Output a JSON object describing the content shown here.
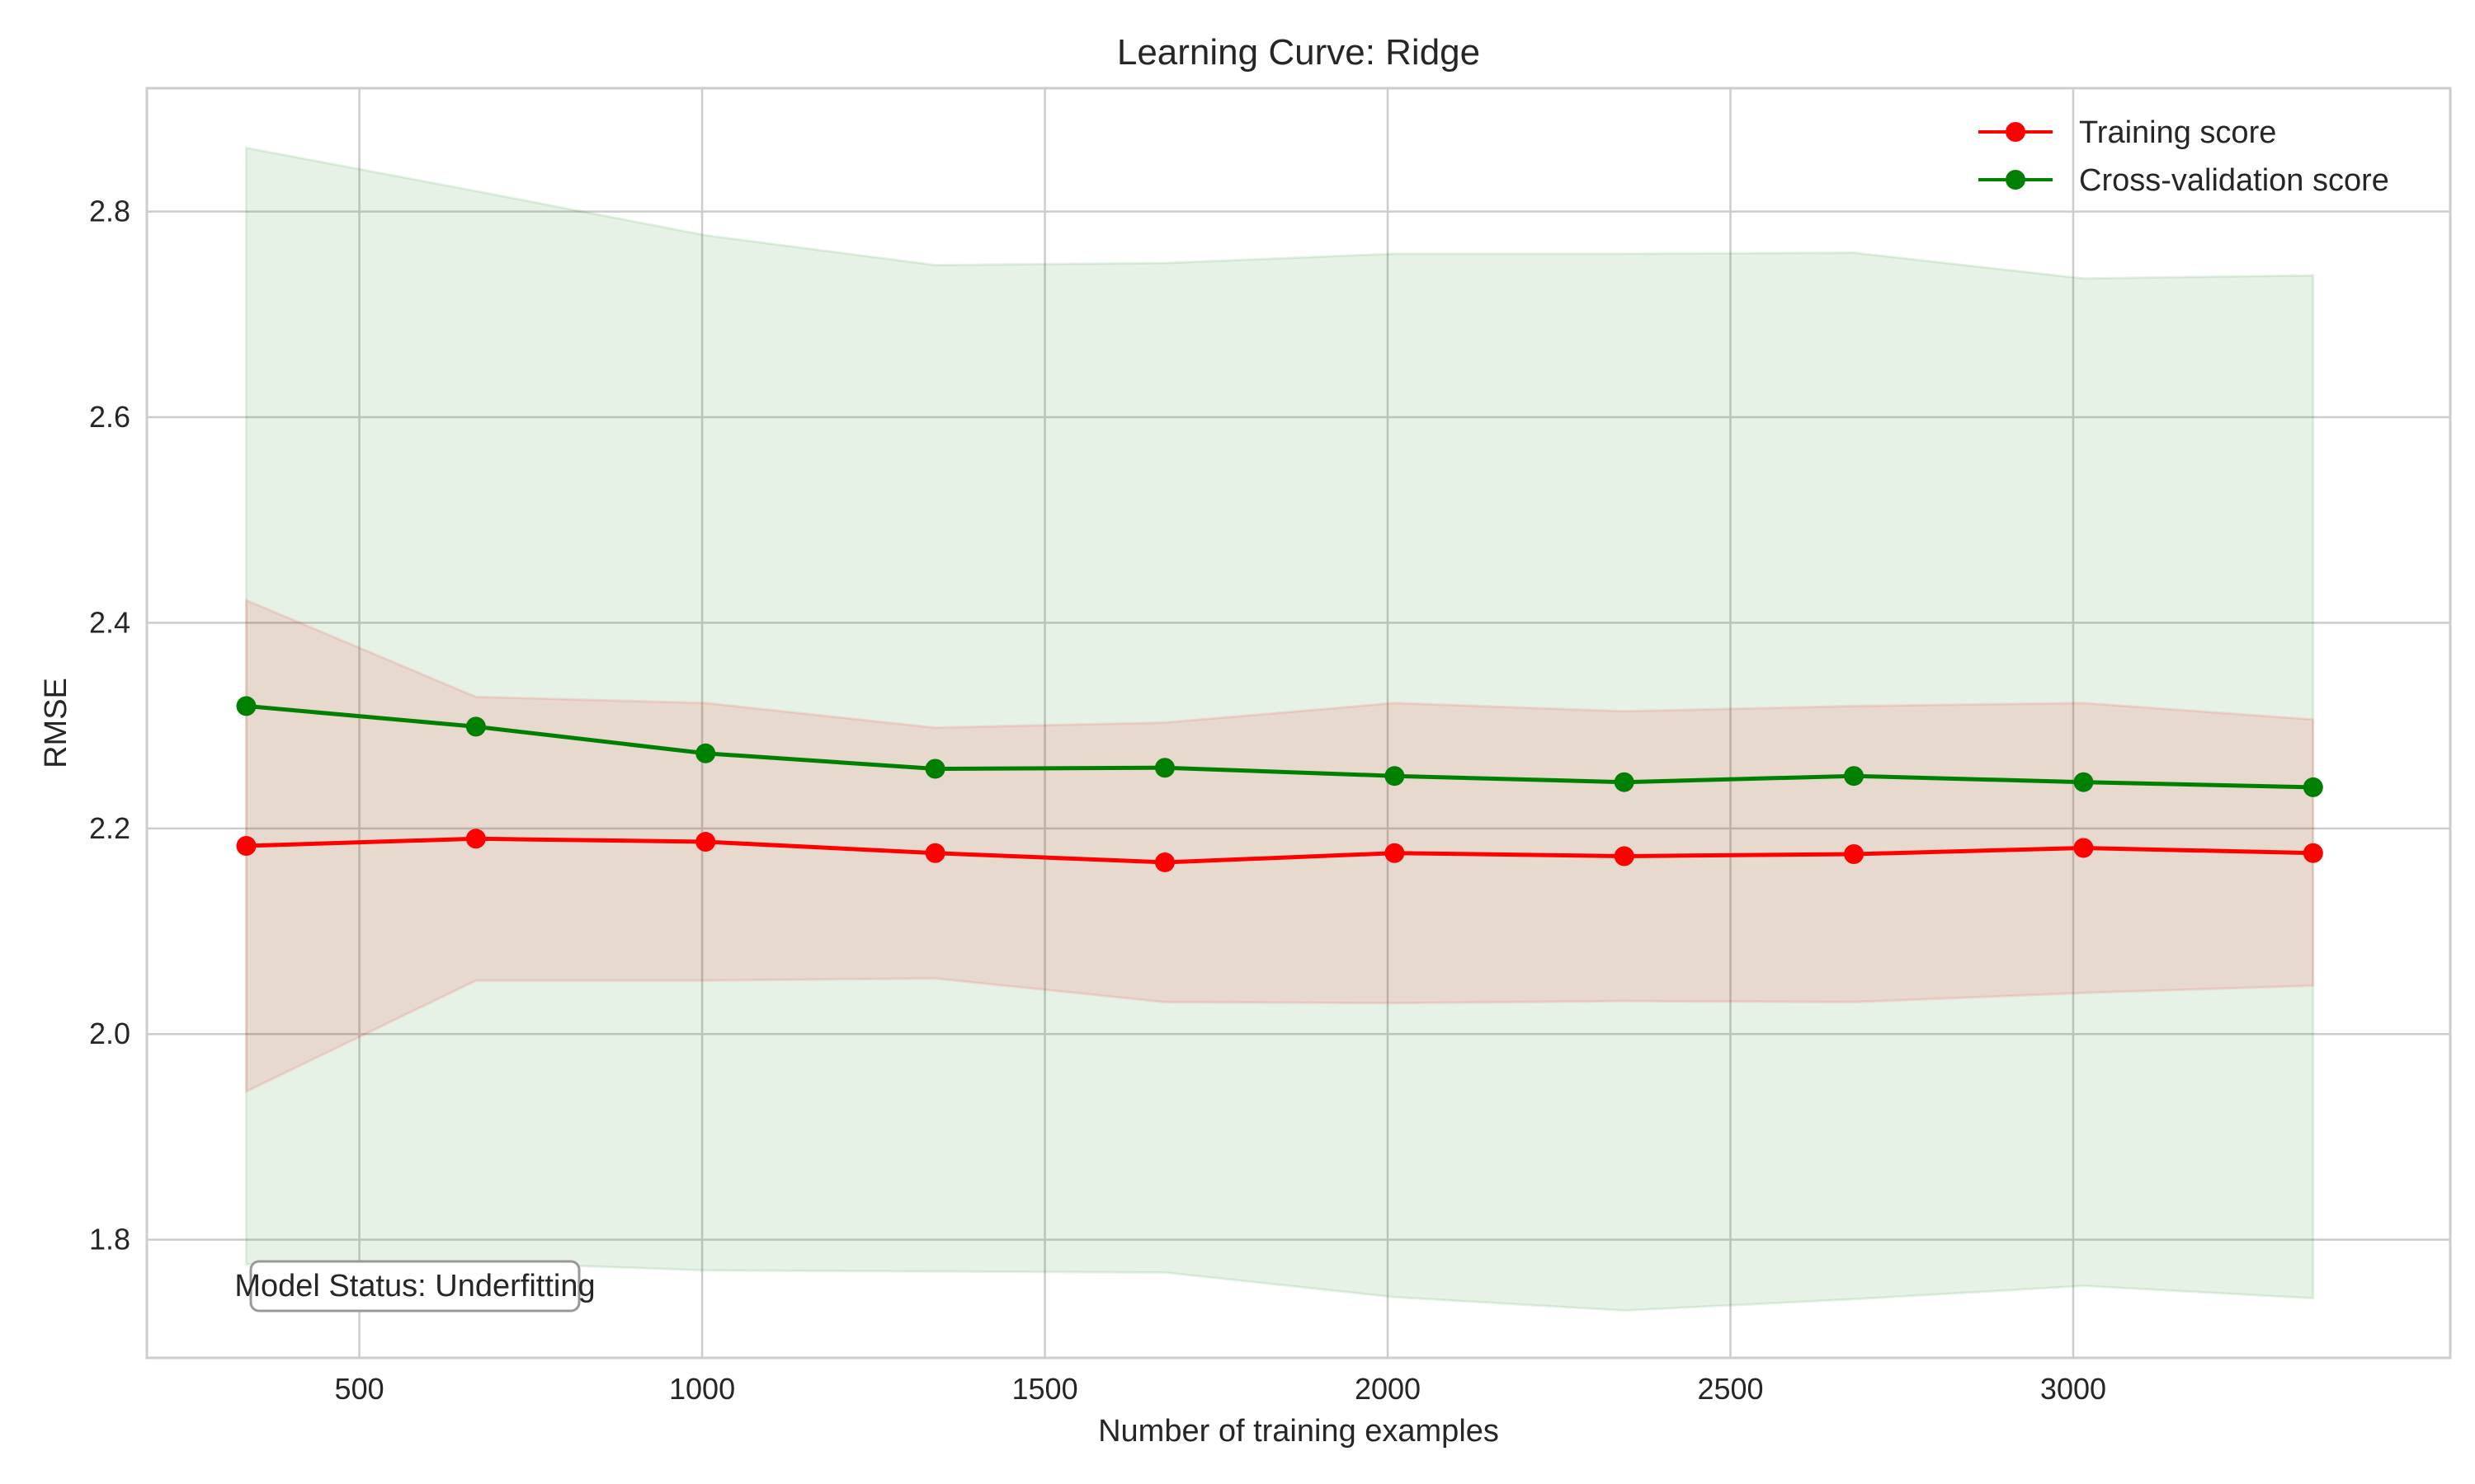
{
  "chart_data": {
    "type": "line",
    "title": "Learning Curve: Ridge",
    "xlabel": "Number of training examples",
    "ylabel": "RMSE",
    "xlim": [
      190,
      3550
    ],
    "ylim": [
      1.685,
      2.92
    ],
    "xticks": [
      500,
      1000,
      1500,
      2000,
      2500,
      3000
    ],
    "yticks": [
      1.8,
      2.0,
      2.2,
      2.4,
      2.6,
      2.8
    ],
    "ytick_labels": [
      "1.8",
      "2.0",
      "2.2",
      "2.4",
      "2.6",
      "2.8"
    ],
    "grid": true,
    "legend_position": "top-right",
    "x": [
      335,
      670,
      1005,
      1340,
      1675,
      2010,
      2345,
      2680,
      3015,
      3350
    ],
    "series": [
      {
        "name": "Training score",
        "color": "#ff0000",
        "band_color": "#e8c4b0",
        "values": [
          2.183,
          2.19,
          2.187,
          2.176,
          2.167,
          2.176,
          2.173,
          2.175,
          2.181,
          2.176
        ],
        "upper": [
          2.422,
          2.328,
          2.322,
          2.298,
          2.303,
          2.322,
          2.314,
          2.319,
          2.322,
          2.306
        ],
        "lower": [
          1.944,
          2.052,
          2.052,
          2.054,
          2.031,
          2.03,
          2.032,
          2.031,
          2.04,
          2.047
        ]
      },
      {
        "name": "Cross-validation score",
        "color": "#008000",
        "band_color": "#cfe8cf",
        "values": [
          2.319,
          2.299,
          2.273,
          2.258,
          2.259,
          2.251,
          2.245,
          2.251,
          2.245,
          2.24
        ],
        "upper": [
          2.862,
          2.82,
          2.777,
          2.748,
          2.75,
          2.759,
          2.759,
          2.76,
          2.735,
          2.738
        ],
        "lower": [
          1.776,
          1.778,
          1.77,
          1.769,
          1.768,
          1.744,
          1.731,
          1.742,
          1.755,
          1.743
        ]
      }
    ],
    "annotation": "Model Status: Underfitting"
  }
}
